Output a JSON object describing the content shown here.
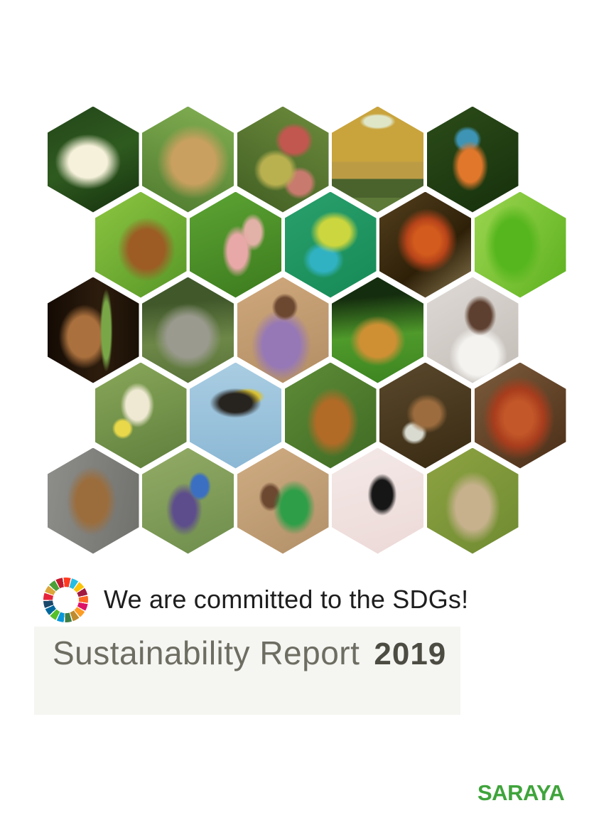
{
  "header": {
    "commitment": "We are committed to the SDGs!",
    "report_title": "Sustainability Report",
    "report_year": "2019"
  },
  "footer": {
    "brand": "SARAYA"
  },
  "colors": {
    "brand_green": "#3fa43b",
    "commitment_text": "#1e1e1e",
    "title_gray": "#6e6d62",
    "year_gray": "#4d4c43",
    "band_gray": "#f5f5f2",
    "page_background": "#ffffff"
  },
  "sdg_wheel": {
    "icon": "sdg-color-wheel-icon",
    "colors": [
      "#e5243b",
      "#dda63a",
      "#4c9f38",
      "#c5192d",
      "#ff3a21",
      "#26bde2",
      "#fcc30b",
      "#a21942",
      "#fd6925",
      "#dd1367",
      "#fd9d24",
      "#bf8b2e",
      "#3f7e44",
      "#0a97d9",
      "#56c02b",
      "#00689d",
      "#19486a"
    ]
  },
  "hexagons": [
    {
      "label": "egret-in-flight",
      "photo": "white egret flying against dark green forest",
      "css": "radial-gradient(58% 42% at 44% 52%, #f6f1da 0 36%, rgba(246,241,218,0) 62%), linear-gradient(155deg, #24461a 0%, #2e5a1f 50%, #15300d 100%)"
    },
    {
      "label": "leopard-cat",
      "photo": "leopard cat among green grass",
      "css": "radial-gradient(62% 55% at 56% 52%, #c9a05f 0 38%, rgba(201,160,95,0) 64%), linear-gradient(200deg, #83b053 0%, #4e7a2e 100%)"
    },
    {
      "label": "fig-cluster",
      "photo": "cluster of red and green figs on tree",
      "css": "radial-gradient(30% 24% at 62% 32%, #c2574f 0 48%, rgba(194,87,79,0) 70%), radial-gradient(34% 28% at 42% 60%, #b9b050 0 48%, rgba(185,176,80,0) 70%), radial-gradient(26% 22% at 68% 72%, #c77a6d 0 48%, rgba(199,122,109,0) 70%), linear-gradient(210deg, #6d8c3c 0%, #415e23 100%)"
    },
    {
      "label": "saraya-team-building",
      "photo": "staff standing before yellow SARAYA building",
      "css": "radial-gradient(26% 10% at 50% 14%, #dfe6c8 0 55%, rgba(223,230,200,0) 75%), linear-gradient(180deg, #c9a43d 0 52%, #bb9c45 52% 68%, #4a632d 68% 86%, #5d7a38 86% 100%)"
    },
    {
      "label": "kingfisher",
      "photo": "orange and blue kingfisher on branch",
      "css": "radial-gradient(30% 36% at 47% 56%, #e0772b 0 42%, rgba(224,119,43,0) 66%), radial-gradient(22% 18% at 44% 31%, #3e94b4 0 48%, rgba(62,148,180,0) 70%), linear-gradient(150deg, #2c4c19 0%, #16300c 100%)"
    },
    {
      "label": "red-langur",
      "photo": "reddish langur monkey in bright green leaves",
      "css": "radial-gradient(48% 46% at 56% 54%, #9c5c24 0 40%, rgba(156,92,36,0) 66%), linear-gradient(140deg, #8dc641 0%, #569627 100%)"
    },
    {
      "label": "dipterocarp-seeds",
      "photo": "pink winged dipterocarp seeds on green leaves",
      "css": "radial-gradient(24% 36% at 52% 56%, #e9a8a8 0 44%, rgba(233,168,168,0) 68%), radial-gradient(20% 26% at 69% 38%, #e2b1a7 0 44%, rgba(226,177,167,0) 68%), linear-gradient(160deg, #5ca433 0%, #3c7a1e 100%)"
    },
    {
      "label": "planthopper",
      "photo": "colorful lantern planthopper insect",
      "css": "radial-gradient(40% 30% at 54% 38%, #ccd63e 0 42%, rgba(204,214,62,0) 66%), radial-gradient(34% 26% at 42% 64%, #31b2c3 0 42%, rgba(49,178,195,0) 66%), linear-gradient(150deg, #2aa06c 0%, #168a56 100%)"
    },
    {
      "label": "oil-palm-fruits",
      "photo": "orange-red oil palm fruit bunch",
      "css": "radial-gradient(50% 46% at 52% 46%, #d35b1d 0 28%, #b7441a 44%, rgba(183,68,26,0) 66%), linear-gradient(140deg, #55401e 0%, #2e2008 60%, #8d7c54 100%)"
    },
    {
      "label": "green-crested-lizard",
      "photo": "bright green crested lizard",
      "css": "radial-gradient(46% 56% at 42% 50%, #55b61d 0 42%, rgba(85,182,29,0) 68%), linear-gradient(120deg, #9cd550 0%, #5cb11f 100%)"
    },
    {
      "label": "tarsier",
      "photo": "tarsier with large eyes clinging to bamboo at night",
      "css": "radial-gradient(10% 56% at 64% 50%, #79a748 0 48%, rgba(121,167,72,0) 70%), radial-gradient(42% 46% at 40% 56%, #aa703d 0 42%, rgba(170,112,61,0) 66%), linear-gradient(90deg, #140b04 0%, #2c1c0d 55%, #1a1006 100%)"
    },
    {
      "label": "borneo-elephant",
      "photo": "young Borneo elephant in green grass",
      "css": "radial-gradient(54% 46% at 50% 56%, #9a9a8e 0 42%, rgba(154,154,142,0) 68%), linear-gradient(175deg, #41582b 0 25%, #6d8748 60%, #587239 100%)"
    },
    {
      "label": "smiling-child",
      "photo": "smiling child in purple clothing",
      "css": "radial-gradient(20% 18% at 52% 28%, #6d4831 0 50%, rgba(109,72,49,0) 72%), radial-gradient(48% 50% at 48% 64%, #9678b6 0 42%, rgba(150,120,182,0) 68%), linear-gradient(160deg, #cfa87c 0%, #b28d64 100%)"
    },
    {
      "label": "tree-frog",
      "photo": "amber tree frog on green leaf",
      "css": "radial-gradient(46% 36% at 50% 60%, #cf9034 0 42%, rgba(207,144,52,0) 66%), linear-gradient(175deg, #142d0e 0 20%, #4f9a2b 55%, #3c8420 100%)"
    },
    {
      "label": "healthcare-worker",
      "photo": "healthcare worker in white by dispenser",
      "css": "radial-gradient(26% 28% at 58% 36%, #5e4030 0 46%, rgba(94,64,48,0) 68%), radial-gradient(44% 38% at 56% 74%, #f4f3f0 0 48%, rgba(244,243,240,0) 72%), linear-gradient(150deg, #dfdad6 0%, #c2bcb6 100%)"
    },
    {
      "label": "field-worker",
      "photo": "woman harvesting in green field with yellow jug",
      "css": "radial-gradient(28% 32% at 46% 40%, #efe9d3 0 44%, rgba(239,233,211,0) 66%), radial-gradient(16% 14% at 30% 62%, #e8d84a 0 50%, rgba(232,216,74,0) 72%), linear-gradient(160deg, #8aa85a 0%, #5e7e3c 100%)"
    },
    {
      "label": "hornbill-flying",
      "photo": "great hornbill soaring in blue sky",
      "css": "radial-gradient(44% 22% at 50% 38%, #27231f 0 40%, rgba(39,35,31,0) 64%), radial-gradient(28% 12% at 63% 32%, #d9c134 0 44%, rgba(217,193,52,0) 68%), linear-gradient(180deg, #a9cde2 0%, #8cb8d5 100%)"
    },
    {
      "label": "orangutan",
      "photo": "orangutan among leafy branches",
      "css": "radial-gradient(42% 48% at 52% 56%, #b16b27 0 42%, rgba(177,107,39,0) 68%), linear-gradient(140deg, #5e8c37 0%, #3f6a24 100%)"
    },
    {
      "label": "handwashing-demo",
      "photo": "hands demonstrating hygiene over basin",
      "css": "radial-gradient(34% 28% at 52% 48%, #9c6c3e 0 42%, rgba(156,108,62,0) 66%), radial-gradient(20% 16% at 38% 66%, #d9dbd1 0 46%, rgba(217,219,209,0) 70%), linear-gradient(160deg, #5a482c 0%, #382a12 100%)"
    },
    {
      "label": "rafflesia-flower",
      "photo": "giant red rafflesia flower",
      "css": "radial-gradient(56% 56% at 48% 52%, #c35729 0 28%, #a83d1d 48%, rgba(168,61,29,0) 70%), radial-gradient(17% 17% at 48% 52%, #5e150a 0 58%, rgba(94,21,10,0) 80%), linear-gradient(140deg, #7c5c3c 0%, #4a2d17 100%)"
    },
    {
      "label": "colugo-on-trunk",
      "photo": "colugo clinging to gray tree trunk",
      "css": "radial-gradient(40% 48% at 48% 50%, #9c6d3c 0 42%, rgba(156,109,60,0) 68%), linear-gradient(100deg, #8e8e8a 0%, #70706c 100%)"
    },
    {
      "label": "boy-tippy-tap",
      "photo": "boy washing hands with blue tippy-tap container",
      "css": "radial-gradient(17% 19% at 63% 36%, #3b6fc2 0 52%, rgba(59,111,194,0) 72%), radial-gradient(30% 38% at 46% 58%, #5d4d8c 0 40%, rgba(93,77,140,0) 66%), linear-gradient(160deg, #93ac66 0%, #6e8d4c 100%)"
    },
    {
      "label": "father-and-children",
      "photo": "man in green shirt laughing with children",
      "css": "radial-gradient(34% 38% at 62% 56%, #2f9e48 0 42%, rgba(47,158,72,0) 68%), radial-gradient(18% 20% at 36% 46%, #6d4831 0 48%, rgba(109,72,49,0) 70%), linear-gradient(150deg, #cfac82 0%, #b29068 100%)"
    },
    {
      "label": "gliding-colugo-silhouette",
      "photo": "black silhouette of gliding animal on pale pink sky",
      "css": "radial-gradient(24% 30% at 55% 44%, #161616 0 46%, rgba(22,22,22,0) 66%), linear-gradient(165deg, #f4e9e7 0%, #ecd9d7 100%)"
    },
    {
      "label": "macaque",
      "photo": "pig-tailed macaque portrait on green background",
      "css": "radial-gradient(44% 50% at 50% 56%, #c6b18c 0 42%, rgba(198,177,140,0) 68%), linear-gradient(140deg, #8ea342 0%, #6e8a31 100%)"
    }
  ]
}
